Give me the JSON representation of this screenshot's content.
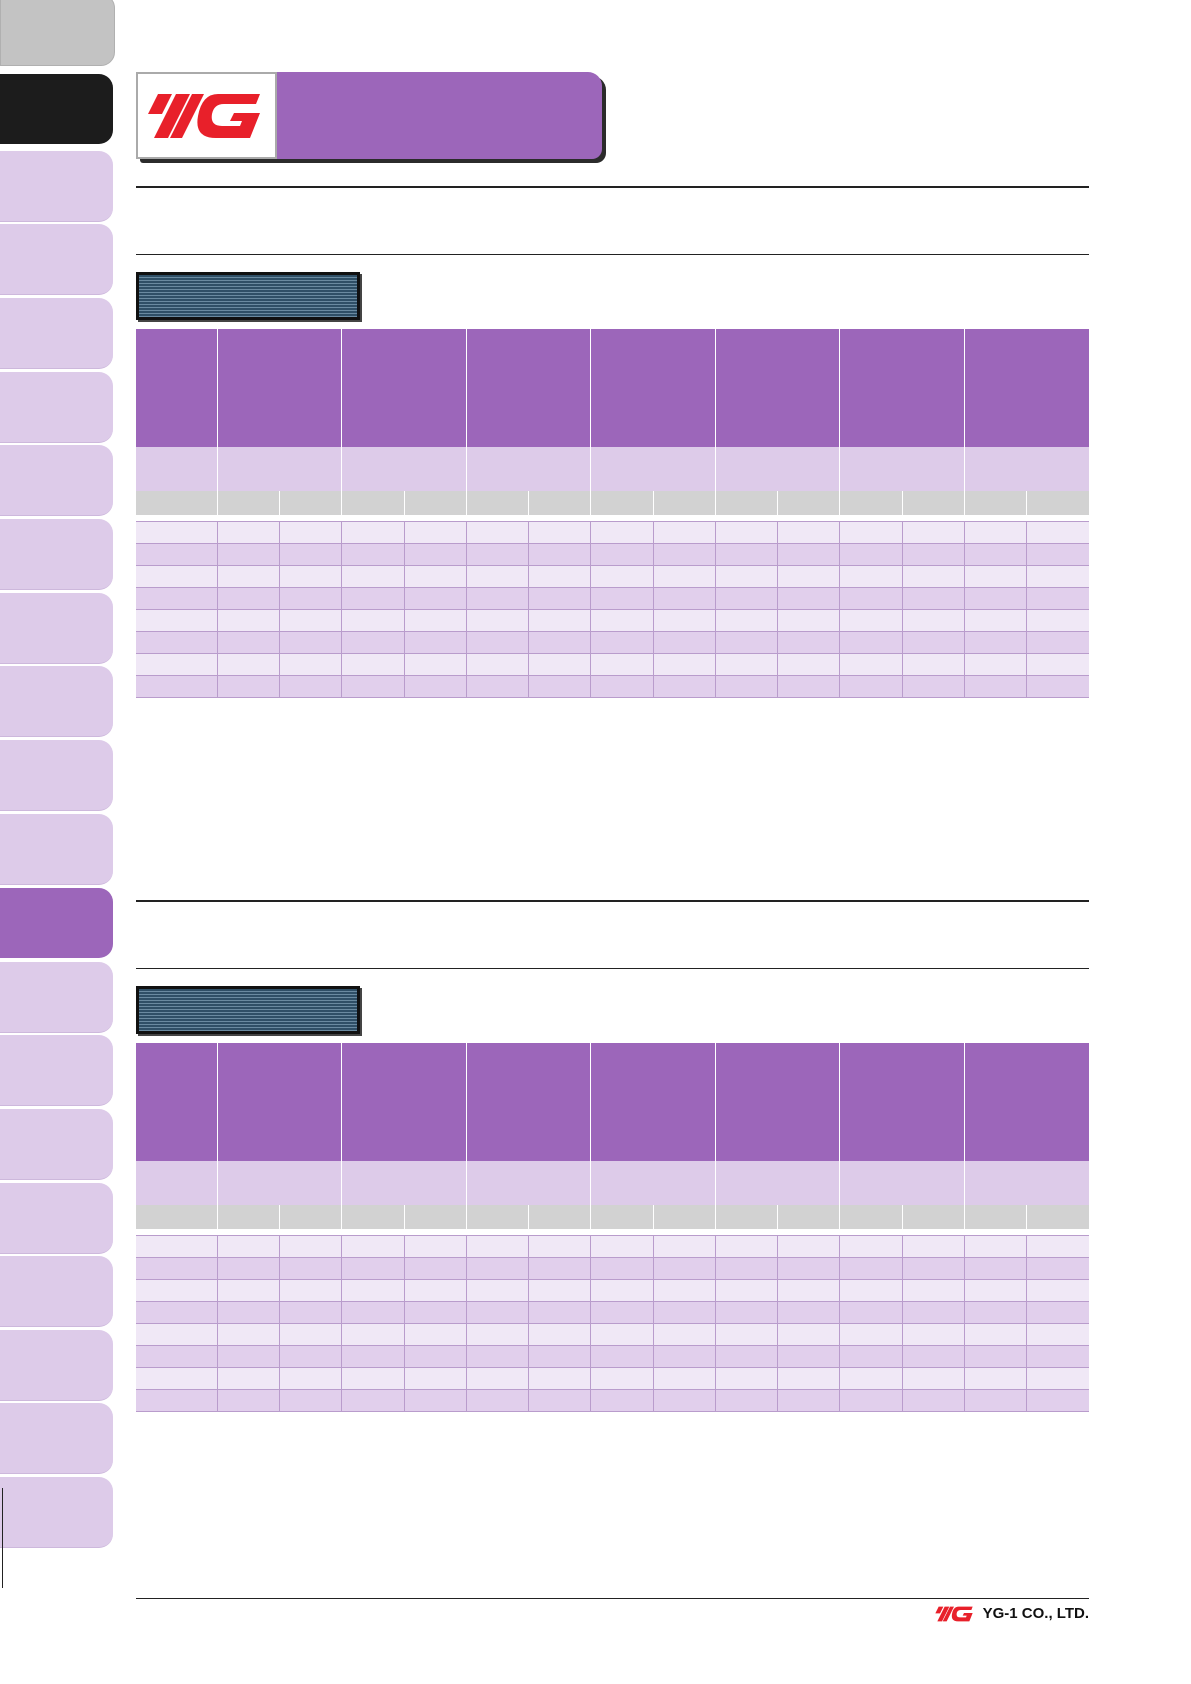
{
  "brand": {
    "logo_text": "YG",
    "logo_color": "#e8202a",
    "company_name": "YG-1 CO., LTD."
  },
  "colors": {
    "accent_purple": "#9c66ba",
    "light_purple": "#ddcbe9",
    "row_light": "#f0e8f6",
    "row_dark": "#e1cfec",
    "unit_gray": "#d2d2d2"
  },
  "side_tabs": {
    "count": 21,
    "active_index": 12
  },
  "tables": [
    {
      "columns": 8,
      "sub_columns_per_group": 2,
      "data_rows": 8
    },
    {
      "columns": 8,
      "sub_columns_per_group": 2,
      "data_rows": 8
    }
  ]
}
